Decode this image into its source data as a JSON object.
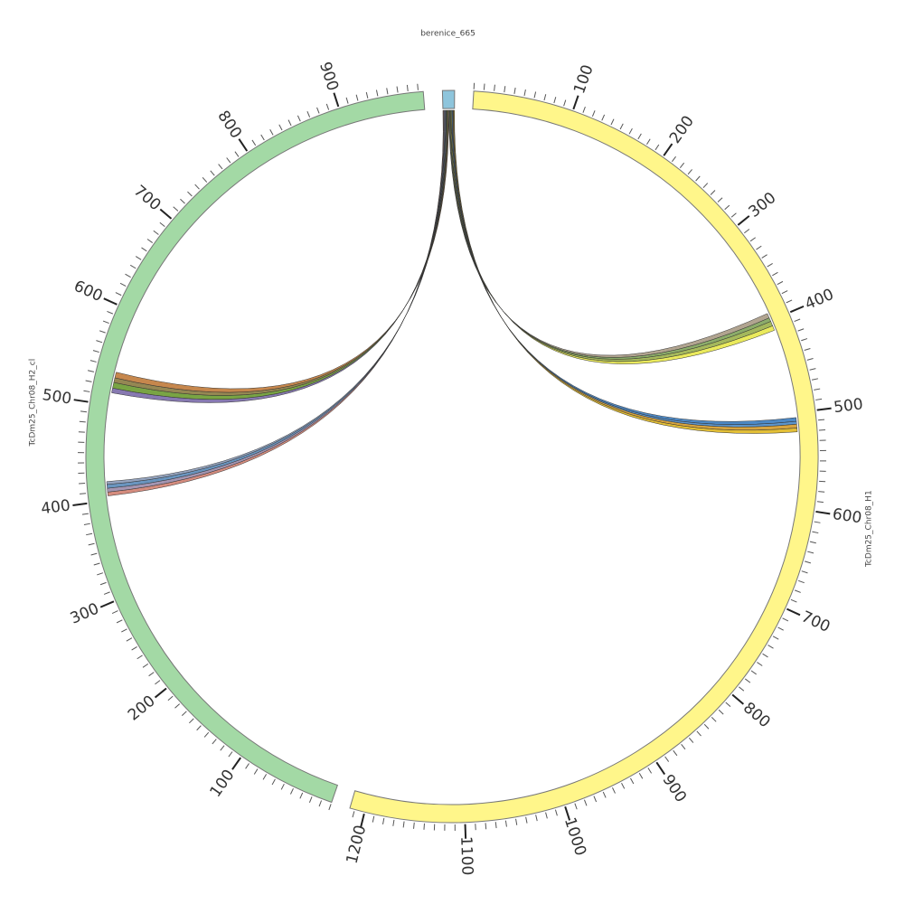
{
  "chart_data": {
    "type": "circos",
    "segments": [
      {
        "name": "berenice_665",
        "length": 12,
        "color": "#8ec5dc"
      },
      {
        "name": "TcDm25_Chr08_H1",
        "length": 1215,
        "color": "#fff68a",
        "ticks": [
          100,
          200,
          300,
          400,
          500,
          600,
          700,
          800,
          900,
          1000,
          1100,
          1200
        ]
      },
      {
        "name": "TcDm25_Chr08_H2_cl",
        "length": 985,
        "color": "#a3d9a5",
        "ticks": [
          100,
          200,
          300,
          400,
          500,
          600,
          700,
          800,
          900
        ]
      }
    ],
    "minor_tick_step": 10,
    "links": [
      {
        "from": "berenice_665",
        "from_range": [
          0,
          0.75
        ],
        "to": "TcDm25_Chr08_H2_cl",
        "to_range": [
          405,
          409
        ],
        "color": "#d08070"
      },
      {
        "from": "berenice_665",
        "from_range": [
          0.75,
          1.5
        ],
        "to": "TcDm25_Chr08_H2_cl",
        "to_range": [
          409,
          413
        ],
        "color": "#9a8aa8"
      },
      {
        "from": "berenice_665",
        "from_range": [
          1.5,
          2.25
        ],
        "to": "TcDm25_Chr08_H2_cl",
        "to_range": [
          413,
          417
        ],
        "color": "#5a8ab8"
      },
      {
        "from": "berenice_665",
        "from_range": [
          2.25,
          3
        ],
        "to": "TcDm25_Chr08_H2_cl",
        "to_range": [
          417,
          420
        ],
        "color": "#8a9ab8"
      },
      {
        "from": "berenice_665",
        "from_range": [
          3,
          3.75
        ],
        "to": "TcDm25_Chr08_H2_cl",
        "to_range": [
          513,
          518
        ],
        "color": "#7a6aa8"
      },
      {
        "from": "berenice_665",
        "from_range": [
          3.75,
          4.5
        ],
        "to": "TcDm25_Chr08_H2_cl",
        "to_range": [
          518,
          524
        ],
        "color": "#6a9a30"
      },
      {
        "from": "berenice_665",
        "from_range": [
          4.5,
          5.25
        ],
        "to": "TcDm25_Chr08_H2_cl",
        "to_range": [
          524,
          529
        ],
        "color": "#8a7a40"
      },
      {
        "from": "berenice_665",
        "from_range": [
          5.25,
          6
        ],
        "to": "TcDm25_Chr08_H2_cl",
        "to_range": [
          529,
          535
        ],
        "color": "#c07a3a"
      },
      {
        "from": "berenice_665",
        "from_range": [
          6,
          6.75
        ],
        "to": "TcDm25_Chr08_H1",
        "to_range": [
          392,
          397
        ],
        "color": "#a89a84"
      },
      {
        "from": "berenice_665",
        "from_range": [
          6.75,
          7.5
        ],
        "to": "TcDm25_Chr08_H1",
        "to_range": [
          397,
          401
        ],
        "color": "#7fa35a"
      },
      {
        "from": "berenice_665",
        "from_range": [
          7.5,
          8.25
        ],
        "to": "TcDm25_Chr08_H1",
        "to_range": [
          401,
          406
        ],
        "color": "#9ab04a"
      },
      {
        "from": "berenice_665",
        "from_range": [
          8.25,
          9
        ],
        "to": "TcDm25_Chr08_H1",
        "to_range": [
          406,
          411
        ],
        "color": "#e8e84a"
      },
      {
        "from": "berenice_665",
        "from_range": [
          9,
          9.75
        ],
        "to": "TcDm25_Chr08_H1",
        "to_range": [
          505,
          509
        ],
        "color": "#3a7cc0"
      },
      {
        "from": "berenice_665",
        "from_range": [
          9.75,
          10.5
        ],
        "to": "TcDm25_Chr08_H1",
        "to_range": [
          509,
          512
        ],
        "color": "#4a8ac8"
      },
      {
        "from": "berenice_665",
        "from_range": [
          10.5,
          11.25
        ],
        "to": "TcDm25_Chr08_H1",
        "to_range": [
          512,
          516
        ],
        "color": "#d49a2a"
      },
      {
        "from": "berenice_665",
        "from_range": [
          11.25,
          12
        ],
        "to": "TcDm25_Chr08_H1",
        "to_range": [
          516,
          520
        ],
        "color": "#e0b820"
      }
    ]
  }
}
